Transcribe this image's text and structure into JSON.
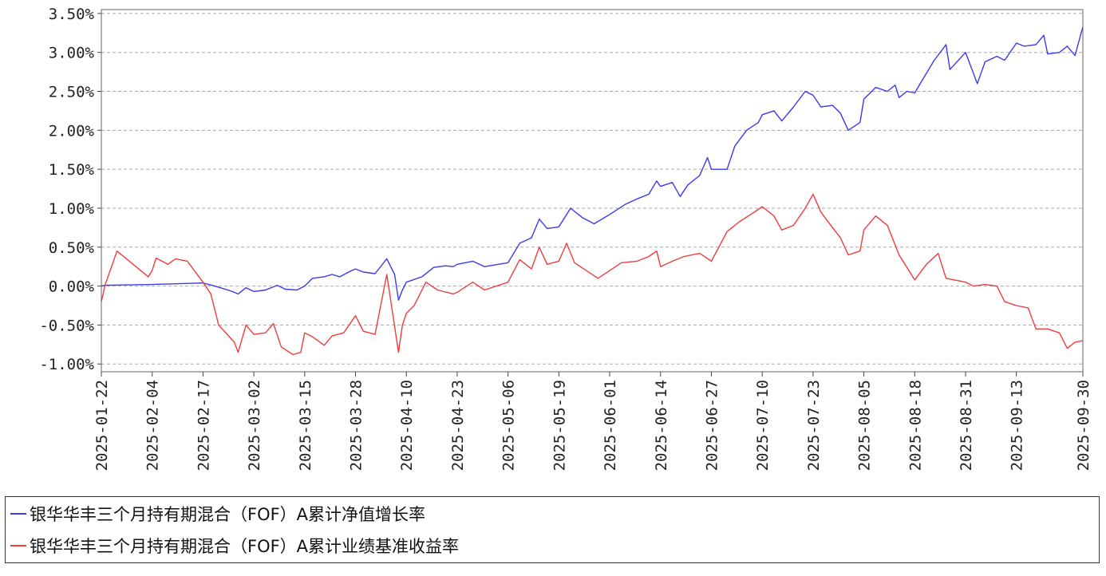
{
  "chart_data": {
    "type": "line",
    "x_ticks": [
      "2025-01-22",
      "2025-02-04",
      "2025-02-17",
      "2025-03-02",
      "2025-03-15",
      "2025-03-28",
      "2025-04-10",
      "2025-04-23",
      "2025-05-06",
      "2025-05-19",
      "2025-06-01",
      "2025-06-14",
      "2025-06-27",
      "2025-07-10",
      "2025-07-23",
      "2025-08-05",
      "2025-08-18",
      "2025-08-31",
      "2025-09-13",
      "2025-09-30"
    ],
    "y_ticks": [
      3.5,
      3.0,
      2.5,
      2.0,
      1.5,
      1.0,
      0.5,
      0.0,
      -0.5,
      -1.0
    ],
    "y_tick_labels": [
      "3.50%",
      "3.00%",
      "2.50%",
      "2.00%",
      "1.50%",
      "1.00%",
      "0.50%",
      "0.00%",
      "-0.50%",
      "-1.00%"
    ],
    "ylim": [
      -1.1,
      3.55
    ],
    "grid": "horizontal dashed",
    "legend_position": "bottom",
    "series": [
      {
        "name": "银华华丰三个月持有期混合（FOF）A累计净值增长率",
        "color": "#3a3af0",
        "points": [
          [
            "2025-01-22",
            0.0
          ],
          [
            "2025-01-23",
            0.01
          ],
          [
            "2025-02-04",
            0.02
          ],
          [
            "2025-02-10",
            0.03
          ],
          [
            "2025-02-17",
            0.04
          ],
          [
            "2025-02-20",
            0.0
          ],
          [
            "2025-02-24",
            -0.06
          ],
          [
            "2025-02-26",
            -0.1
          ],
          [
            "2025-02-28",
            -0.02
          ],
          [
            "2025-03-02",
            -0.07
          ],
          [
            "2025-03-05",
            -0.05
          ],
          [
            "2025-03-08",
            0.01
          ],
          [
            "2025-03-10",
            -0.04
          ],
          [
            "2025-03-13",
            -0.05
          ],
          [
            "2025-03-15",
            0.0
          ],
          [
            "2025-03-17",
            0.1
          ],
          [
            "2025-03-20",
            0.12
          ],
          [
            "2025-03-22",
            0.15
          ],
          [
            "2025-03-24",
            0.12
          ],
          [
            "2025-03-27",
            0.2
          ],
          [
            "2025-03-28",
            0.22
          ],
          [
            "2025-03-30",
            0.18
          ],
          [
            "2025-04-02",
            0.16
          ],
          [
            "2025-04-05",
            0.35
          ],
          [
            "2025-04-07",
            0.15
          ],
          [
            "2025-04-08",
            -0.18
          ],
          [
            "2025-04-09",
            -0.05
          ],
          [
            "2025-04-10",
            0.05
          ],
          [
            "2025-04-14",
            0.12
          ],
          [
            "2025-04-17",
            0.24
          ],
          [
            "2025-04-20",
            0.26
          ],
          [
            "2025-04-22",
            0.25
          ],
          [
            "2025-04-23",
            0.28
          ],
          [
            "2025-04-27",
            0.32
          ],
          [
            "2025-04-30",
            0.25
          ],
          [
            "2025-05-06",
            0.3
          ],
          [
            "2025-05-09",
            0.55
          ],
          [
            "2025-05-12",
            0.62
          ],
          [
            "2025-05-14",
            0.86
          ],
          [
            "2025-05-16",
            0.74
          ],
          [
            "2025-05-19",
            0.76
          ],
          [
            "2025-05-22",
            1.0
          ],
          [
            "2025-05-25",
            0.88
          ],
          [
            "2025-05-28",
            0.8
          ],
          [
            "2025-06-01",
            0.92
          ],
          [
            "2025-06-05",
            1.05
          ],
          [
            "2025-06-08",
            1.12
          ],
          [
            "2025-06-11",
            1.18
          ],
          [
            "2025-06-13",
            1.35
          ],
          [
            "2025-06-14",
            1.28
          ],
          [
            "2025-06-17",
            1.33
          ],
          [
            "2025-06-19",
            1.15
          ],
          [
            "2025-06-21",
            1.3
          ],
          [
            "2025-06-24",
            1.42
          ],
          [
            "2025-06-26",
            1.65
          ],
          [
            "2025-06-27",
            1.5
          ],
          [
            "2025-07-01",
            1.5
          ],
          [
            "2025-07-03",
            1.8
          ],
          [
            "2025-07-06",
            2.0
          ],
          [
            "2025-07-09",
            2.1
          ],
          [
            "2025-07-10",
            2.2
          ],
          [
            "2025-07-13",
            2.25
          ],
          [
            "2025-07-15",
            2.12
          ],
          [
            "2025-07-18",
            2.3
          ],
          [
            "2025-07-21",
            2.5
          ],
          [
            "2025-07-23",
            2.45
          ],
          [
            "2025-07-25",
            2.3
          ],
          [
            "2025-07-28",
            2.32
          ],
          [
            "2025-07-30",
            2.22
          ],
          [
            "2025-08-01",
            2.0
          ],
          [
            "2025-08-04",
            2.1
          ],
          [
            "2025-08-05",
            2.4
          ],
          [
            "2025-08-08",
            2.55
          ],
          [
            "2025-08-11",
            2.5
          ],
          [
            "2025-08-13",
            2.58
          ],
          [
            "2025-08-14",
            2.42
          ],
          [
            "2025-08-16",
            2.5
          ],
          [
            "2025-08-18",
            2.48
          ],
          [
            "2025-08-20",
            2.65
          ],
          [
            "2025-08-23",
            2.9
          ],
          [
            "2025-08-26",
            3.1
          ],
          [
            "2025-08-27",
            2.78
          ],
          [
            "2025-08-31",
            3.0
          ],
          [
            "2025-09-03",
            2.6
          ],
          [
            "2025-09-05",
            2.88
          ],
          [
            "2025-09-08",
            2.95
          ],
          [
            "2025-09-10",
            2.9
          ],
          [
            "2025-09-13",
            3.12
          ],
          [
            "2025-09-15",
            3.08
          ],
          [
            "2025-09-18",
            3.1
          ],
          [
            "2025-09-20",
            3.22
          ],
          [
            "2025-09-21",
            2.98
          ],
          [
            "2025-09-24",
            3.0
          ],
          [
            "2025-09-26",
            3.08
          ],
          [
            "2025-09-28",
            2.96
          ],
          [
            "2025-09-30",
            3.33
          ]
        ]
      },
      {
        "name": "银华华丰三个月持有期混合（FOF）A累计业绩基准收益率",
        "color": "#f03c3c",
        "points": [
          [
            "2025-01-22",
            -0.2
          ],
          [
            "2025-01-23",
            0.02
          ],
          [
            "2025-01-26",
            0.45
          ],
          [
            "2025-02-03",
            0.12
          ],
          [
            "2025-02-04",
            0.2
          ],
          [
            "2025-02-05",
            0.36
          ],
          [
            "2025-02-08",
            0.28
          ],
          [
            "2025-02-10",
            0.35
          ],
          [
            "2025-02-13",
            0.32
          ],
          [
            "2025-02-17",
            0.05
          ],
          [
            "2025-02-19",
            -0.1
          ],
          [
            "2025-02-21",
            -0.5
          ],
          [
            "2025-02-25",
            -0.72
          ],
          [
            "2025-02-26",
            -0.85
          ],
          [
            "2025-02-28",
            -0.5
          ],
          [
            "2025-03-02",
            -0.62
          ],
          [
            "2025-03-05",
            -0.6
          ],
          [
            "2025-03-07",
            -0.48
          ],
          [
            "2025-03-09",
            -0.78
          ],
          [
            "2025-03-12",
            -0.88
          ],
          [
            "2025-03-14",
            -0.85
          ],
          [
            "2025-03-15",
            -0.6
          ],
          [
            "2025-03-17",
            -0.65
          ],
          [
            "2025-03-20",
            -0.76
          ],
          [
            "2025-03-22",
            -0.64
          ],
          [
            "2025-03-25",
            -0.6
          ],
          [
            "2025-03-28",
            -0.38
          ],
          [
            "2025-03-30",
            -0.58
          ],
          [
            "2025-04-02",
            -0.62
          ],
          [
            "2025-04-05",
            0.15
          ],
          [
            "2025-04-08",
            -0.85
          ],
          [
            "2025-04-09",
            -0.5
          ],
          [
            "2025-04-10",
            -0.35
          ],
          [
            "2025-04-12",
            -0.25
          ],
          [
            "2025-04-15",
            0.05
          ],
          [
            "2025-04-18",
            -0.05
          ],
          [
            "2025-04-22",
            -0.1
          ],
          [
            "2025-04-23",
            -0.08
          ],
          [
            "2025-04-27",
            0.05
          ],
          [
            "2025-04-30",
            -0.05
          ],
          [
            "2025-05-06",
            0.05
          ],
          [
            "2025-05-09",
            0.34
          ],
          [
            "2025-05-12",
            0.22
          ],
          [
            "2025-05-14",
            0.5
          ],
          [
            "2025-05-16",
            0.28
          ],
          [
            "2025-05-19",
            0.32
          ],
          [
            "2025-05-21",
            0.55
          ],
          [
            "2025-05-23",
            0.3
          ],
          [
            "2025-05-26",
            0.2
          ],
          [
            "2025-05-29",
            0.1
          ],
          [
            "2025-06-01",
            0.2
          ],
          [
            "2025-06-04",
            0.3
          ],
          [
            "2025-06-08",
            0.32
          ],
          [
            "2025-06-11",
            0.38
          ],
          [
            "2025-06-13",
            0.45
          ],
          [
            "2025-06-14",
            0.25
          ],
          [
            "2025-06-17",
            0.32
          ],
          [
            "2025-06-20",
            0.38
          ],
          [
            "2025-06-24",
            0.42
          ],
          [
            "2025-06-27",
            0.32
          ],
          [
            "2025-07-01",
            0.7
          ],
          [
            "2025-07-04",
            0.82
          ],
          [
            "2025-07-08",
            0.95
          ],
          [
            "2025-07-10",
            1.02
          ],
          [
            "2025-07-13",
            0.9
          ],
          [
            "2025-07-15",
            0.72
          ],
          [
            "2025-07-18",
            0.78
          ],
          [
            "2025-07-21",
            1.0
          ],
          [
            "2025-07-23",
            1.18
          ],
          [
            "2025-07-25",
            0.95
          ],
          [
            "2025-07-28",
            0.75
          ],
          [
            "2025-07-30",
            0.62
          ],
          [
            "2025-08-01",
            0.4
          ],
          [
            "2025-08-04",
            0.45
          ],
          [
            "2025-08-05",
            0.72
          ],
          [
            "2025-08-08",
            0.9
          ],
          [
            "2025-08-11",
            0.78
          ],
          [
            "2025-08-14",
            0.4
          ],
          [
            "2025-08-18",
            0.08
          ],
          [
            "2025-08-21",
            0.28
          ],
          [
            "2025-08-24",
            0.42
          ],
          [
            "2025-08-26",
            0.1
          ],
          [
            "2025-08-31",
            0.05
          ],
          [
            "2025-09-02",
            0.0
          ],
          [
            "2025-09-05",
            0.02
          ],
          [
            "2025-09-08",
            0.0
          ],
          [
            "2025-09-10",
            -0.2
          ],
          [
            "2025-09-13",
            -0.25
          ],
          [
            "2025-09-16",
            -0.28
          ],
          [
            "2025-09-18",
            -0.55
          ],
          [
            "2025-09-21",
            -0.55
          ],
          [
            "2025-09-24",
            -0.6
          ],
          [
            "2025-09-26",
            -0.8
          ],
          [
            "2025-09-28",
            -0.72
          ],
          [
            "2025-09-30",
            -0.7
          ]
        ]
      }
    ]
  }
}
